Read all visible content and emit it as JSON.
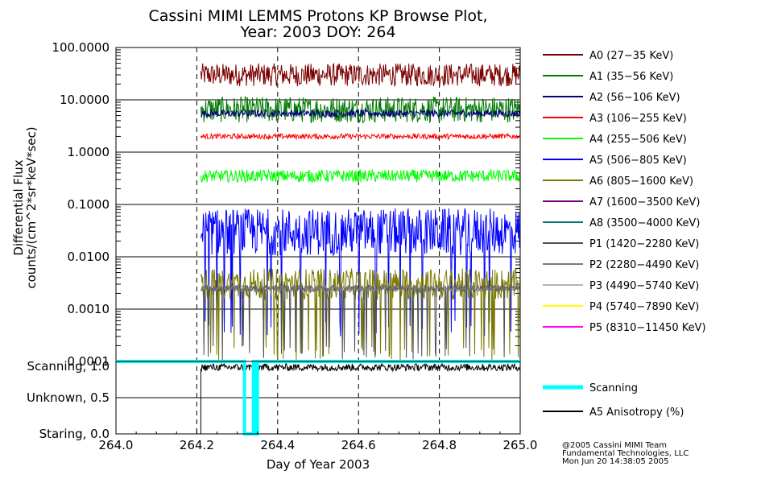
{
  "chart_data": [
    {
      "type": "line",
      "title": "Cassini MIMI LEMMS Protons KP Browse Plot,",
      "subtitle": "Year: 2003 DOY: 264",
      "ylabel_line1": "Differential Flux",
      "ylabel_line2": "counts/(cm^2*sr*keV*sec)",
      "y_scale": "log",
      "ylim": [
        0.0001,
        100
      ],
      "xlim": [
        264.0,
        265.0
      ],
      "y_tick_labels": [
        "100.0000",
        "10.0000",
        "1.0000",
        "0.1000",
        "0.0100",
        "0.0010",
        "0.0001"
      ],
      "y_tick_values": [
        100,
        10,
        1,
        0.1,
        0.01,
        0.001,
        0.0001
      ],
      "grid": true,
      "vertical_dashed_lines": [
        264.2,
        264.4,
        264.6,
        264.8
      ],
      "data_start": 264.21,
      "legend_position": "right",
      "series": [
        {
          "name": "A0 (27−35 KeV)",
          "color": "#7a0000",
          "level": 30,
          "spread": 0.22,
          "spikes": []
        },
        {
          "name": "A1 (35−56 KeV)",
          "color": "#007a00",
          "level": 6.5,
          "spread": 0.25,
          "spikes": []
        },
        {
          "name": "A2 (56−106 KeV)",
          "color": "#00007a",
          "level": 5.5,
          "spread": 0.07,
          "spikes": []
        },
        {
          "name": "A3 (106−255 KeV)",
          "color": "#ff0000",
          "level": 2.0,
          "spread": 0.05,
          "spikes": []
        },
        {
          "name": "A4 (255−506 KeV)",
          "color": "#00ff00",
          "level": 0.35,
          "spread": 0.12,
          "spikes": []
        },
        {
          "name": "A5 (506−805 KeV)",
          "color": "#0000ff",
          "level": 0.03,
          "spread": 0.45,
          "spikes": [
            0.0003
          ]
        },
        {
          "name": "A6 (805−1600 KeV)",
          "color": "#7a7a00",
          "level": 0.003,
          "spread": 0.3,
          "spikes": [
            0.0001
          ]
        },
        {
          "name": "A7 (1600−3500 KeV)",
          "color": "#7a007a",
          "level": null,
          "spread": 0,
          "spikes": []
        },
        {
          "name": "A8 (3500−4000 KeV)",
          "color": "#007a7a",
          "level": null,
          "spread": 0,
          "spikes": []
        },
        {
          "name": "P1 (1420−2280 KeV)",
          "color": "#505050",
          "level": 0.0025,
          "spread": 0.06,
          "spikes": [
            0.0001
          ]
        },
        {
          "name": "P2 (2280−4490 KeV)",
          "color": "#7a7a7a",
          "level": 0.0025,
          "spread": 0.06,
          "spikes": []
        },
        {
          "name": "P3 (4490−5740 KeV)",
          "color": "#b4b4b4",
          "level": null,
          "spread": 0,
          "spikes": []
        },
        {
          "name": "P4 (5740−7890 KeV)",
          "color": "#ffff00",
          "level": null,
          "spread": 0,
          "spikes": []
        },
        {
          "name": "P5 (8310−11450 KeV)",
          "color": "#ff00ff",
          "level": null,
          "spread": 0,
          "spikes": []
        }
      ]
    },
    {
      "type": "line",
      "xlabel": "Day of Year 2003",
      "xlim": [
        264.0,
        265.0
      ],
      "x_tick_labels": [
        "264.0",
        "264.2",
        "264.4",
        "264.6",
        "264.8",
        "265.0"
      ],
      "x_tick_values": [
        264.0,
        264.2,
        264.4,
        264.6,
        264.8,
        265.0
      ],
      "y_tick_labels": [
        "Scanning, 1.0",
        "Unknown, 0.5",
        "Staring, 0.0"
      ],
      "y_tick_values": [
        1.0,
        0.5,
        0.0
      ],
      "ylim": [
        0.0,
        1.0
      ],
      "series": [
        {
          "name": "Scanning",
          "color": "#00ffff",
          "x": [
            264.0,
            264.318,
            264.318,
            264.34,
            264.34,
            264.347,
            264.347,
            264.35,
            264.35,
            265.0
          ],
          "y": [
            1.0,
            1.0,
            0.0,
            0.0,
            1.0,
            1.0,
            0.0,
            0.0,
            1.0,
            1.0
          ]
        },
        {
          "name": "A5 Anisotropy (%)",
          "color": "#000000",
          "level": 0.92,
          "spread": 0.05,
          "start": 264.21
        }
      ]
    }
  ],
  "credits": [
    "@2005 Cassini MIMI Team",
    "Fundamental Technologies, LLC",
    "Mon Jun 20 14:38:05 2005"
  ]
}
